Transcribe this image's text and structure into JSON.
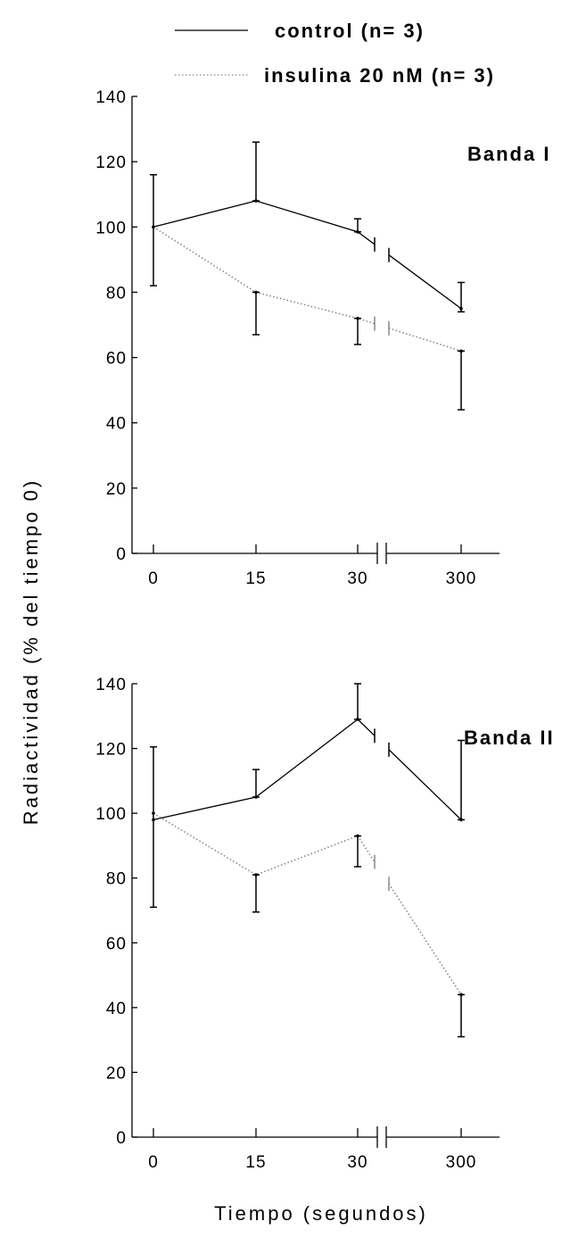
{
  "chart_data": [
    {
      "type": "line",
      "panel_label": "Banda I",
      "x_categories": [
        "0",
        "15",
        "30",
        "300"
      ],
      "y_ticks": [
        0,
        20,
        40,
        60,
        80,
        100,
        120,
        140
      ],
      "ylim": [
        0,
        140
      ],
      "axis_break": "between 30 and 300",
      "series": [
        {
          "name": "control (n= 3)",
          "style": "solid",
          "color": "#000000",
          "values": [
            100,
            108,
            98.5,
            75
          ],
          "err_low": [
            82,
            null,
            98.5,
            74
          ],
          "err_high": [
            116,
            126,
            102.5,
            83
          ]
        },
        {
          "name": "insulina 20 nM (n= 3)",
          "style": "dotted",
          "color": "#888888",
          "values": [
            100,
            80,
            72,
            62
          ],
          "err_low": [
            null,
            67,
            64,
            null
          ],
          "err_high": [
            null,
            80,
            72,
            62
          ],
          "err_low_extra": [
            null,
            null,
            null,
            44
          ]
        }
      ]
    },
    {
      "type": "line",
      "panel_label": "Banda II",
      "x_categories": [
        "0",
        "15",
        "30",
        "300"
      ],
      "y_ticks": [
        0,
        20,
        40,
        60,
        80,
        100,
        120,
        140
      ],
      "ylim": [
        0,
        140
      ],
      "axis_break": "between 30 and 300",
      "series": [
        {
          "name": "control (n= 3)",
          "style": "solid",
          "color": "#000000",
          "values": [
            98,
            105,
            129,
            98
          ],
          "err_low": [
            71,
            null,
            null,
            null
          ],
          "err_high": [
            120.5,
            113.5,
            140,
            122.5
          ]
        },
        {
          "name": "insulina 20 nM (n= 3)",
          "style": "dotted",
          "color": "#888888",
          "values": [
            100,
            81,
            93,
            44
          ],
          "err_low": [
            null,
            69.5,
            83.5,
            31
          ],
          "err_high": [
            null,
            81,
            93,
            44
          ]
        }
      ]
    }
  ],
  "legend": [
    {
      "label": "control (n= 3)",
      "style": "solid"
    },
    {
      "label": "insulina 20 nM (n= 3)",
      "style": "dotted"
    }
  ],
  "ylabel": "Radiactividad (% del tiempo 0)",
  "xlabel": "Tiempo (segundos)"
}
